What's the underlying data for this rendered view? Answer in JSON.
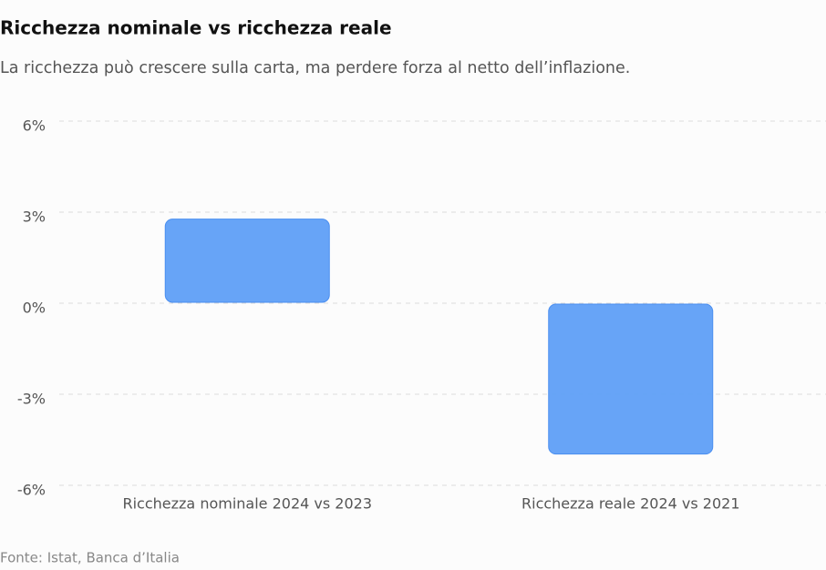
{
  "chart_data": {
    "type": "bar",
    "title": "Ricchezza nominale vs ricchezza reale",
    "subtitle": "La ricchezza può crescere sulla carta, ma perdere forza al netto dell’inflazione.",
    "source": "Fonte: Istat, Banca d’Italia",
    "categories": [
      "Ricchezza nominale 2024 vs 2023",
      "Ricchezza reale 2024 vs 2021"
    ],
    "values": [
      2.8,
      -5.0
    ],
    "color": "#5f9ff7",
    "ylim": [
      -6,
      6
    ],
    "yticks": [
      {
        "value": -6,
        "label": "-6%"
      },
      {
        "value": -3,
        "label": "-3%"
      },
      {
        "value": 0,
        "label": "0%"
      },
      {
        "value": 3,
        "label": "3%"
      },
      {
        "value": 6,
        "label": "6%"
      }
    ],
    "grid": true
  }
}
